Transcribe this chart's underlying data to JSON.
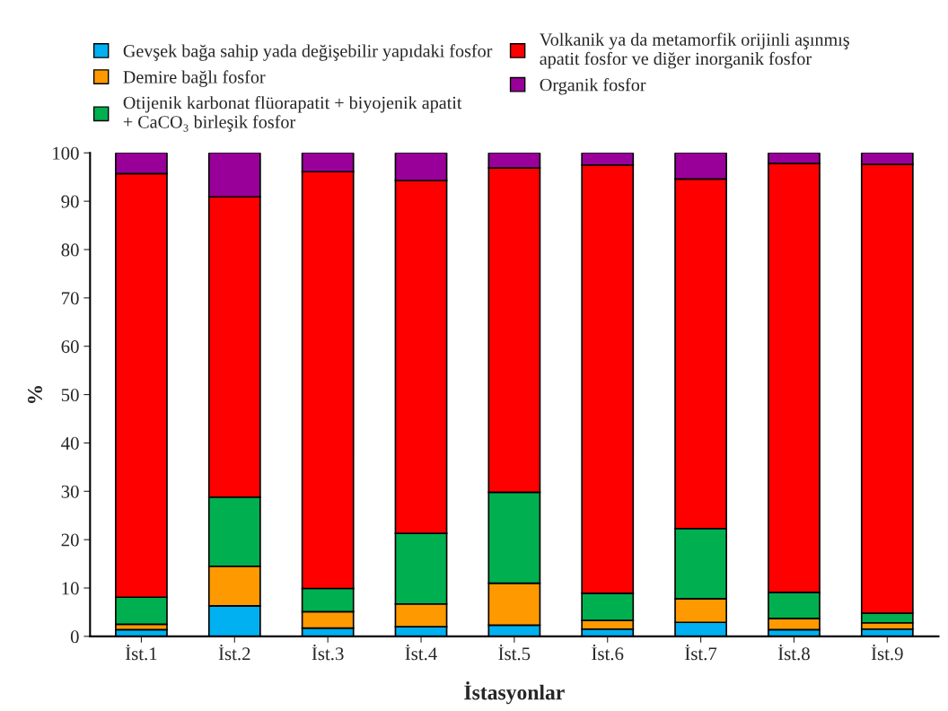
{
  "chart_data": {
    "type": "bar",
    "stacked": true,
    "xlabel": "İstasyonlar",
    "ylabel": "%",
    "categories": [
      "İst.1",
      "İst.2",
      "İst.3",
      "İst.4",
      "İst.5",
      "İst.6",
      "İst.7",
      "İst.8",
      "İst.9"
    ],
    "series": [
      {
        "name": "Gevşek bağa sahip yada değişebilir yapıdaki fosfor",
        "color": "#00b0f0",
        "values": [
          1.4,
          6.3,
          1.7,
          2.0,
          2.3,
          1.5,
          2.9,
          1.4,
          1.5
        ]
      },
      {
        "name": "Demire bağlı fosfor",
        "color": "#ff9900",
        "values": [
          1.1,
          8.2,
          3.4,
          4.7,
          8.7,
          1.8,
          4.9,
          2.3,
          1.3
        ]
      },
      {
        "name": "Otijenik karbonat flüorapatit + biyojenik apatit\n+ CaCO₃ birleşik fosfor",
        "color": "#00b050",
        "values": [
          5.6,
          14.3,
          4.8,
          14.6,
          18.8,
          5.6,
          14.5,
          5.4,
          2.0
        ]
      },
      {
        "name": "Volkanik ya da metamorfik orijinli aşınmış\napatit fosfor ve diğer inorganik fosfor",
        "color": "#ff0000",
        "values": [
          87.6,
          62.1,
          86.2,
          73.0,
          67.1,
          88.6,
          72.3,
          88.7,
          92.8
        ]
      },
      {
        "name": "Organik fosfor",
        "color": "#990099",
        "values": [
          4.3,
          9.1,
          3.9,
          5.7,
          3.1,
          2.5,
          5.4,
          2.2,
          2.4
        ]
      }
    ],
    "ylim": [
      0,
      100
    ],
    "yticks": [
      0,
      10,
      20,
      30,
      40,
      50,
      60,
      70,
      80,
      90,
      100
    ],
    "grid": false,
    "legend": "top"
  }
}
